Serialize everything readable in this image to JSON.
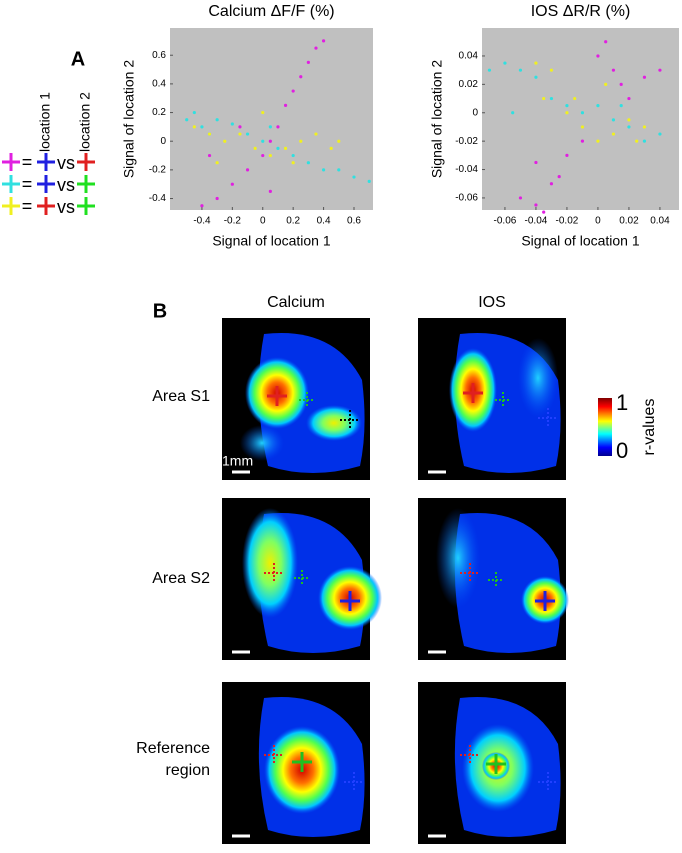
{
  "panel_labels": [
    "A",
    "B"
  ],
  "legend": {
    "axis_labels": [
      "location 1",
      "location 2"
    ],
    "rows": [
      {
        "eq": "=",
        "vs": "vs"
      },
      {
        "eq": "=",
        "vs": "vs"
      },
      {
        "eq": "=",
        "vs": "vs"
      }
    ]
  },
  "chart_data": [
    {
      "type": "scatter",
      "title": "Calcium ΔF/F (%)",
      "x_label": "Signal of location 1",
      "y_label": "Signal of location 2",
      "xlim": [
        -0.61,
        0.725
      ],
      "ylim": [
        -0.48,
        0.79
      ],
      "xticks": [
        -0.4,
        -0.2,
        0,
        0.2,
        0.4,
        0.6
      ],
      "yticks": [
        -0.4,
        -0.2,
        0,
        0.2,
        0.4,
        0.6
      ],
      "series": [
        {
          "color": "#e020e0",
          "x": [
            -0.4,
            -0.3,
            -0.2,
            -0.1,
            0,
            0.05,
            0.1,
            0.15,
            0.2,
            0.25,
            0.3,
            0.35,
            0.4,
            -0.35,
            -0.15,
            0.05
          ],
          "values": [
            -0.45,
            -0.4,
            -0.3,
            -0.2,
            -0.1,
            0,
            0.1,
            0.25,
            0.35,
            0.45,
            0.55,
            0.65,
            0.7,
            -0.1,
            0.1,
            -0.35
          ]
        },
        {
          "color": "#30e0e0",
          "x": [
            -0.5,
            -0.45,
            -0.4,
            -0.3,
            -0.2,
            -0.1,
            0,
            0.1,
            0.2,
            0.3,
            0.4,
            0.5,
            0.6,
            0.7,
            -0.35,
            0.05
          ],
          "values": [
            0.15,
            0.2,
            0.1,
            0.15,
            0.12,
            0.05,
            0,
            -0.05,
            -0.1,
            -0.15,
            -0.2,
            -0.2,
            -0.25,
            -0.28,
            0.05,
            0.1
          ]
        },
        {
          "color": "#f0f020",
          "x": [
            -0.45,
            -0.35,
            -0.25,
            -0.15,
            -0.05,
            0.05,
            0.15,
            0.25,
            0.35,
            0.45,
            -0.3,
            0,
            0.2,
            0.5
          ],
          "values": [
            0.1,
            0.05,
            0,
            0.05,
            -0.05,
            -0.1,
            -0.05,
            0,
            0.05,
            -0.05,
            -0.15,
            0.2,
            -0.15,
            0
          ]
        }
      ]
    },
    {
      "type": "scatter",
      "title": "IOS ΔR/R (%)",
      "x_label": "Signal of location 1",
      "y_label": "Signal of location 2",
      "xlim": [
        -0.0748,
        0.0523
      ],
      "ylim": [
        -0.0685,
        0.0597
      ],
      "xticks": [
        -0.06,
        -0.04,
        -0.02,
        0,
        0.02,
        0.04
      ],
      "yticks": [
        -0.06,
        -0.04,
        -0.02,
        0,
        0.02,
        0.04
      ],
      "series": [
        {
          "color": "#e020e0",
          "x": [
            -0.05,
            -0.04,
            -0.035,
            -0.03,
            -0.02,
            -0.01,
            0,
            0.005,
            0.01,
            0.015,
            0.02,
            0.03,
            0.04,
            -0.025,
            -0.04
          ],
          "values": [
            -0.06,
            -0.065,
            -0.07,
            -0.05,
            -0.03,
            -0.02,
            0.04,
            0.05,
            0.03,
            0.02,
            0.01,
            0.025,
            0.03,
            -0.045,
            -0.035
          ]
        },
        {
          "color": "#30e0e0",
          "x": [
            -0.07,
            -0.06,
            -0.05,
            -0.04,
            -0.03,
            -0.02,
            -0.01,
            0,
            0.01,
            0.02,
            0.03,
            0.04,
            -0.055,
            0.015
          ],
          "values": [
            0.03,
            0.035,
            0.03,
            0.025,
            0.01,
            0.005,
            0,
            0.005,
            -0.005,
            -0.01,
            -0.02,
            -0.015,
            0,
            0.005
          ]
        },
        {
          "color": "#f0f020",
          "x": [
            -0.04,
            -0.03,
            -0.02,
            -0.01,
            0,
            0.01,
            0.02,
            0.03,
            -0.015,
            0.005,
            0.025,
            -0.035
          ],
          "values": [
            0.035,
            0.03,
            0,
            -0.01,
            -0.02,
            -0.015,
            -0.005,
            -0.01,
            0.01,
            0.02,
            -0.02,
            0.01
          ]
        }
      ]
    }
  ],
  "panel_b": {
    "columns": [
      "Calcium",
      "IOS"
    ],
    "rows": [
      "Area S1",
      "Area S2",
      "Reference region"
    ],
    "scale_bar": "1mm",
    "colorbar": {
      "max": "1",
      "min": "0",
      "label": "r-values"
    }
  }
}
